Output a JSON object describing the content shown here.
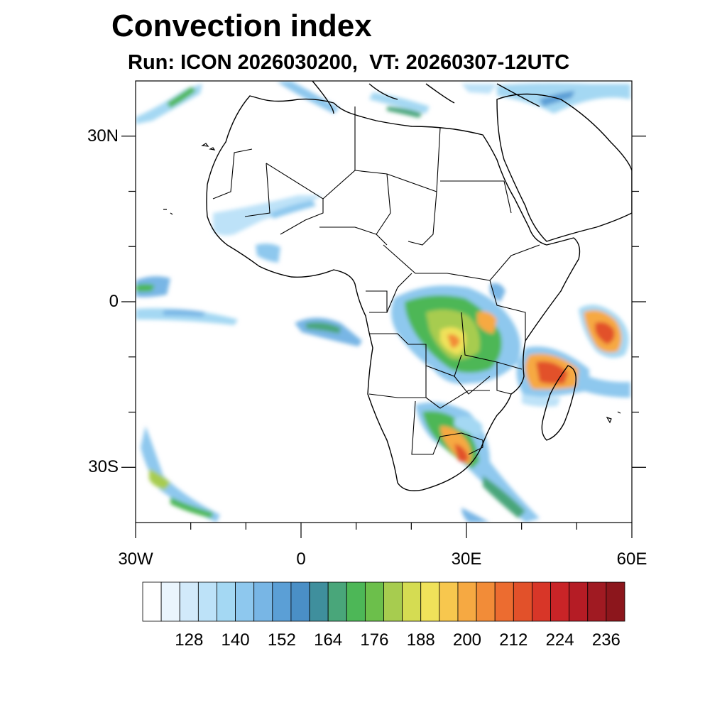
{
  "title": "Convection index",
  "subtitle": "Run: ICON 2026030200,  VT: 20260307-12UTC",
  "map": {
    "lat_ticks": [
      {
        "label": "30N",
        "lat": 30
      },
      {
        "label": "0",
        "lat": 0
      },
      {
        "label": "30S",
        "lat": -30
      }
    ],
    "lon_ticks": [
      {
        "label": "30W",
        "lon": -30
      },
      {
        "label": "0",
        "lon": 0
      },
      {
        "label": "30E",
        "lon": 30
      },
      {
        "label": "60E",
        "lon": 60
      }
    ],
    "extent": {
      "lon_min": -30,
      "lon_max": 60,
      "lat_min": -40,
      "lat_max": 40
    }
  },
  "colorbar": {
    "labels": [
      "128",
      "140",
      "152",
      "164",
      "176",
      "188",
      "200",
      "212",
      "224",
      "236"
    ],
    "colors": [
      "#ffffff",
      "#eaf5fd",
      "#d2eafa",
      "#bde2f8",
      "#a4d8f3",
      "#8ec8ee",
      "#78b6e5",
      "#5b9fd6",
      "#4a8fc6",
      "#3f8f9d",
      "#49a67a",
      "#4db757",
      "#6cbf4b",
      "#a7cc4f",
      "#d5dc52",
      "#f0e25a",
      "#f7c74e",
      "#f6a942",
      "#f28c38",
      "#ec6c30",
      "#e2512a",
      "#d83628",
      "#c92427",
      "#b51c25",
      "#a01a22",
      "#8c161c"
    ]
  }
}
